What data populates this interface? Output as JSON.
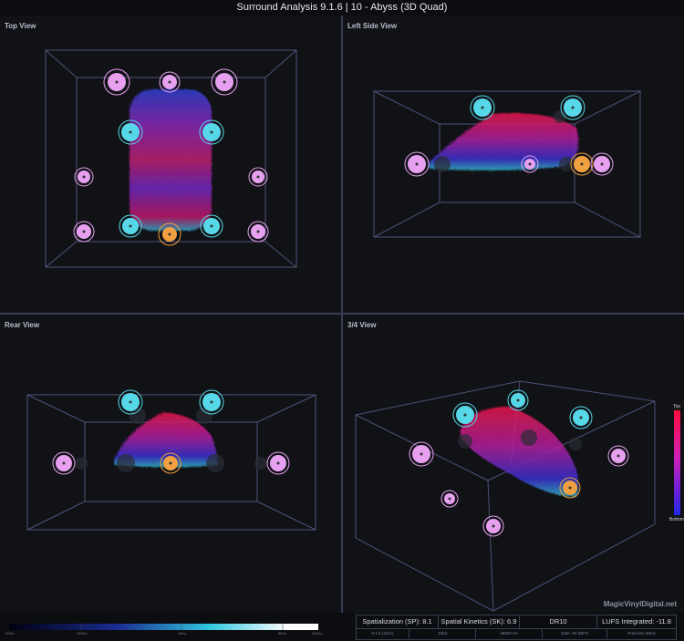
{
  "window": {
    "title": "Surround Analysis 9.1.6 | 10 - Abyss (3D Quad)"
  },
  "views": {
    "top": "Top View",
    "left": "Left Side View",
    "rear": "Rear View",
    "three_quarter": "3/4 View"
  },
  "legend": {
    "top_label": "Top",
    "bottom_label": "Bottom"
  },
  "watermark": "MagicVinylDigital.net",
  "frequency_scale": {
    "labels": [
      "20Hz",
      "100Hz",
      "1kHz",
      "5kHz",
      "20kHz"
    ],
    "gradient_colors": [
      "#00001a",
      "#1a2a8a",
      "#2ec8e0",
      "#ffffff"
    ]
  },
  "stats": {
    "spatialization": "Spatialization (SP): 8.1",
    "spatial_kinetics": "Spatial Kinetics (SK): 6.9",
    "dynamic_range": "DR10",
    "lufs": "LUFS Integrated: -11.8",
    "channel_config": "9.1.6 (16ch)",
    "bit_depth": "24bit",
    "sample_rate": "48000 Hz",
    "gate": "Gate -60 dBFS",
    "precision": "Precision 50ms"
  },
  "colors": {
    "speaker_height": "#e7a0f0",
    "speaker_main": "#56d8e8",
    "speaker_lfe": "#f0a040",
    "box_lines": "#5a5d86",
    "cloud_top": "#e01850",
    "cloud_bottom": "#2030c8",
    "cloud_low": "#30b0c8"
  }
}
